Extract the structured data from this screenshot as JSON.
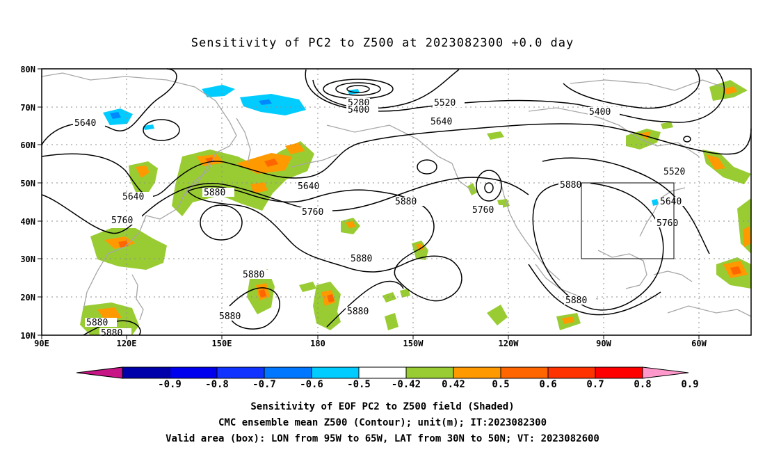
{
  "title": "Sensitivity of PC2 to Z500 at 2023082300 +0.0 day",
  "map": {
    "lat_labels": [
      "80N",
      "70N",
      "60N",
      "50N",
      "40N",
      "30N",
      "20N",
      "10N"
    ],
    "lon_labels": [
      "90E",
      "120E",
      "150E",
      "180",
      "150W",
      "120W",
      "90W",
      "60W"
    ],
    "lon_range": [
      "90E",
      "50W"
    ],
    "lat_range": [
      "10N",
      "80N"
    ],
    "box": {
      "lon": [
        "95W",
        "65W"
      ],
      "lat": [
        "30N",
        "50N"
      ]
    },
    "colors": {
      "contour": "#000000",
      "coast": "#a6a6a6",
      "grid": "#8c8c8c",
      "positive_green": "#99cc33",
      "positive_orange": "#ff9900",
      "positive_darkorange": "#ff6600",
      "negative_cyan": "#00ccff",
      "negative_blue": "#0088ff"
    },
    "contour_labels": [
      {
        "text": "5280"
      },
      {
        "text": "5400"
      },
      {
        "text": "5520"
      },
      {
        "text": "5640"
      },
      {
        "text": "5400"
      },
      {
        "text": "5640"
      },
      {
        "text": "5640"
      },
      {
        "text": "5640"
      },
      {
        "text": "5880"
      },
      {
        "text": "5760"
      },
      {
        "text": "5760"
      },
      {
        "text": "5880"
      },
      {
        "text": "5760"
      },
      {
        "text": "5880"
      },
      {
        "text": "5520"
      },
      {
        "text": "5640"
      },
      {
        "text": "5760"
      },
      {
        "text": "5880"
      },
      {
        "text": "5880"
      },
      {
        "text": "5880"
      },
      {
        "text": "5880"
      },
      {
        "text": "5880"
      },
      {
        "text": "5880"
      },
      {
        "text": "5880"
      }
    ]
  },
  "colorbar": {
    "colors": [
      "#c71585",
      "#0000aa",
      "#0000ee",
      "#1133ff",
      "#0077ff",
      "#00ccff",
      "#ffffff",
      "#99cc33",
      "#ff9900",
      "#ff6600",
      "#ff3300",
      "#ff0000",
      "#ff99cc"
    ],
    "labels": [
      "-0.9",
      "-0.8",
      "-0.7",
      "-0.6",
      "-0.5",
      "-0.42",
      "0.42",
      "0.5",
      "0.6",
      "0.7",
      "0.8",
      "0.9"
    ]
  },
  "captions": {
    "line1": "Sensitivity of EOF PC2 to Z500 field (Shaded)",
    "line2": "CMC ensemble mean Z500 (Contour); unit(m); IT:2023082300",
    "line3": "Valid area (box): LON from 95W to 65W, LAT from 30N to 50N; VT: 2023082600"
  }
}
